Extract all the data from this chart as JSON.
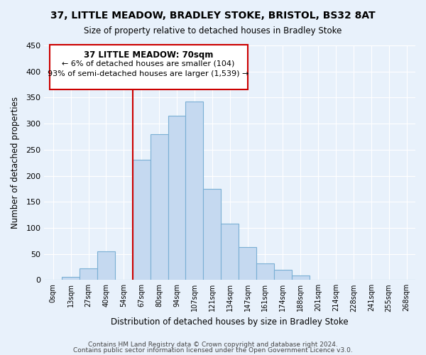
{
  "title": "37, LITTLE MEADOW, BRADLEY STOKE, BRISTOL, BS32 8AT",
  "subtitle": "Size of property relative to detached houses in Bradley Stoke",
  "xlabel": "Distribution of detached houses by size in Bradley Stoke",
  "ylabel": "Number of detached properties",
  "bin_labels": [
    "0sqm",
    "13sqm",
    "27sqm",
    "40sqm",
    "54sqm",
    "67sqm",
    "80sqm",
    "94sqm",
    "107sqm",
    "121sqm",
    "134sqm",
    "147sqm",
    "161sqm",
    "174sqm",
    "188sqm",
    "201sqm",
    "214sqm",
    "228sqm",
    "241sqm",
    "255sqm",
    "268sqm"
  ],
  "bar_heights": [
    0,
    6,
    22,
    55,
    0,
    230,
    280,
    315,
    343,
    175,
    108,
    63,
    32,
    19,
    8,
    0,
    0,
    0,
    0,
    0,
    0
  ],
  "bar_color": "#c5d9f0",
  "bar_edge_color": "#7aafd4",
  "vline_x_idx": 5,
  "vline_color": "#cc0000",
  "annotation_title": "37 LITTLE MEADOW: 70sqm",
  "annotation_line1": "← 6% of detached houses are smaller (104)",
  "annotation_line2": "93% of semi-detached houses are larger (1,539) →",
  "annotation_box_color": "#ffffff",
  "annotation_box_edge": "#cc0000",
  "ylim": [
    0,
    450
  ],
  "yticks": [
    0,
    50,
    100,
    150,
    200,
    250,
    300,
    350,
    400,
    450
  ],
  "footer1": "Contains HM Land Registry data © Crown copyright and database right 2024.",
  "footer2": "Contains public sector information licensed under the Open Government Licence v3.0.",
  "bg_color": "#e8f1fb",
  "plot_bg_color": "#e8f1fb",
  "grid_color": "#ffffff",
  "title_fontsize": 10,
  "subtitle_fontsize": 9
}
